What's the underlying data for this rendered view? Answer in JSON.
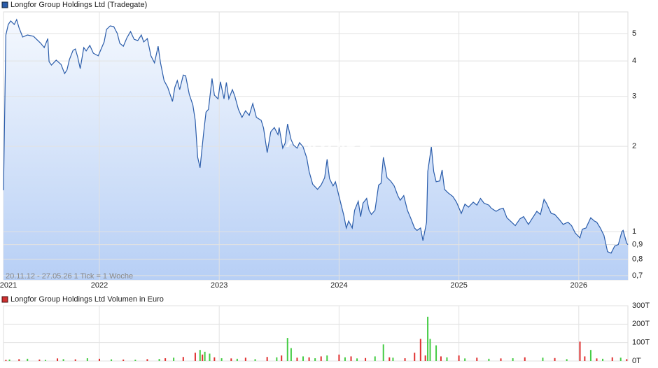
{
  "chart_data": [
    {
      "type": "line",
      "log_scale": true,
      "grid": true,
      "info_text": "20.11.12 - 27.05.26   1 Tick = 1 Woche",
      "watermark": "ARIVA.DE",
      "xlim": [
        2021.2,
        2026.41
      ],
      "xticks": [
        2021,
        2022,
        2023,
        2024,
        2025,
        2026
      ],
      "ylim": [
        0.676,
        5.96
      ],
      "yticks": [
        {
          "value": 0.7,
          "label": "0,7"
        },
        {
          "value": 0.8,
          "label": "0,8"
        },
        {
          "value": 0.9,
          "label": "0,9"
        },
        1,
        2,
        3,
        4,
        5
      ],
      "series": [
        {
          "name": "Longfor Group Holdings Ltd (Tradegate)",
          "color": "#2a5caa",
          "x": [
            2021.2,
            2021.22,
            2021.24,
            2021.26,
            2021.29,
            2021.31,
            2021.33,
            2021.36,
            2021.4,
            2021.45,
            2021.51,
            2021.54,
            2021.57,
            2021.58,
            2021.6,
            2021.64,
            2021.68,
            2021.71,
            2021.73,
            2021.75,
            2021.78,
            2021.8,
            2021.82,
            2021.84,
            2021.87,
            2021.89,
            2021.92,
            2021.95,
            2021.99,
            2022.04,
            2022.06,
            2022.09,
            2022.12,
            2022.15,
            2022.17,
            2022.2,
            2022.23,
            2022.26,
            2022.29,
            2022.32,
            2022.35,
            2022.37,
            2022.4,
            2022.43,
            2022.46,
            2022.49,
            2022.51,
            2022.54,
            2022.57,
            2022.61,
            2022.63,
            2022.65,
            2022.67,
            2022.7,
            2022.72,
            2022.75,
            2022.78,
            2022.8,
            2022.82,
            2022.84,
            2022.87,
            2022.89,
            2022.91,
            2022.94,
            2022.96,
            2022.99,
            2023.01,
            2023.04,
            2023.06,
            2023.08,
            2023.11,
            2023.13,
            2023.16,
            2023.19,
            2023.22,
            2023.25,
            2023.28,
            2023.31,
            2023.35,
            2023.37,
            2023.4,
            2023.43,
            2023.46,
            2023.49,
            2023.5,
            2023.53,
            2023.55,
            2023.57,
            2023.6,
            2023.62,
            2023.65,
            2023.67,
            2023.7,
            2023.73,
            2023.75,
            2023.78,
            2023.82,
            2023.85,
            2023.88,
            2023.9,
            2023.92,
            2023.95,
            2023.97,
            2024.01,
            2024.04,
            2024.06,
            2024.08,
            2024.11,
            2024.13,
            2024.16,
            2024.18,
            2024.2,
            2024.23,
            2024.25,
            2024.27,
            2024.3,
            2024.33,
            2024.35,
            2024.37,
            2024.4,
            2024.43,
            2024.46,
            2024.49,
            2024.51,
            2024.54,
            2024.57,
            2024.6,
            2024.63,
            2024.65,
            2024.68,
            2024.7,
            2024.73,
            2024.74,
            2024.77,
            2024.79,
            2024.81,
            2024.84,
            2024.86,
            2024.88,
            2024.91,
            2024.95,
            2024.98,
            2025.02,
            2025.05,
            2025.08,
            2025.12,
            2025.15,
            2025.18,
            2025.21,
            2025.25,
            2025.27,
            2025.31,
            2025.34,
            2025.37,
            2025.4,
            2025.44,
            2025.47,
            2025.51,
            2025.54,
            2025.58,
            2025.61,
            2025.65,
            2025.68,
            2025.71,
            2025.73,
            2025.77,
            2025.8,
            2025.84,
            2025.87,
            2025.91,
            2025.94,
            2025.97,
            2026.01,
            2026.03,
            2026.06,
            2026.1,
            2026.13,
            2026.15,
            2026.18,
            2026.21,
            2026.24,
            2026.27,
            2026.3,
            2026.33,
            2026.36,
            2026.37,
            2026.4,
            2026.41
          ],
          "values": [
            1.4,
            4.94,
            5.38,
            5.54,
            5.38,
            5.6,
            5.23,
            4.86,
            4.94,
            4.89,
            4.62,
            4.46,
            4.8,
            3.98,
            3.87,
            4.03,
            3.89,
            3.61,
            3.72,
            4.05,
            4.36,
            4.41,
            4.12,
            3.76,
            4.46,
            4.34,
            4.54,
            4.26,
            4.17,
            4.67,
            5.17,
            5.32,
            5.29,
            5.0,
            4.62,
            4.51,
            4.83,
            5.08,
            4.77,
            4.72,
            4.94,
            4.67,
            4.8,
            4.17,
            3.94,
            4.51,
            3.94,
            3.41,
            3.23,
            2.88,
            3.23,
            3.41,
            3.17,
            3.57,
            3.55,
            3.05,
            2.8,
            2.47,
            1.83,
            1.68,
            2.23,
            2.64,
            2.7,
            3.47,
            3.03,
            2.94,
            3.38,
            2.94,
            3.36,
            2.94,
            3.17,
            3.01,
            2.7,
            2.53,
            2.67,
            2.57,
            2.83,
            2.53,
            2.47,
            2.32,
            1.9,
            2.25,
            2.33,
            2.2,
            2.33,
            1.97,
            2.05,
            2.4,
            2.11,
            2.02,
            1.97,
            2.06,
            1.99,
            1.82,
            1.63,
            1.47,
            1.41,
            1.46,
            1.55,
            1.8,
            1.54,
            1.45,
            1.5,
            1.28,
            1.14,
            1.03,
            1.09,
            1.03,
            1.19,
            1.28,
            1.13,
            1.26,
            1.31,
            1.19,
            1.15,
            1.19,
            1.46,
            1.48,
            1.83,
            1.55,
            1.51,
            1.45,
            1.34,
            1.29,
            1.34,
            1.19,
            1.11,
            1.03,
            1.01,
            1.03,
            0.93,
            1.08,
            1.63,
            1.99,
            1.63,
            1.5,
            1.51,
            1.65,
            1.41,
            1.37,
            1.33,
            1.27,
            1.16,
            1.25,
            1.22,
            1.27,
            1.24,
            1.31,
            1.26,
            1.24,
            1.21,
            1.18,
            1.2,
            1.21,
            1.12,
            1.08,
            1.05,
            1.11,
            1.13,
            1.06,
            1.11,
            1.18,
            1.15,
            1.3,
            1.26,
            1.16,
            1.15,
            1.1,
            1.06,
            1.08,
            1.05,
            0.99,
            0.95,
            1.02,
            1.03,
            1.12,
            1.09,
            1.08,
            1.03,
            0.97,
            0.85,
            0.84,
            0.89,
            0.9,
            1.0,
            1.01,
            0.91,
            0.9
          ]
        }
      ]
    },
    {
      "type": "bar",
      "title": "Longfor Group Holdings Ltd Volumen in Euro",
      "color": "#d03030",
      "grid": true,
      "xlim": [
        2021.2,
        2026.41
      ],
      "ylim": [
        0,
        300
      ],
      "yticks": [
        {
          "value": 0,
          "label": "0T"
        },
        {
          "value": 100,
          "label": "100T"
        },
        {
          "value": 200,
          "label": "200T"
        },
        {
          "value": 300,
          "label": "300T"
        }
      ],
      "series": [
        {
          "color": "#44cc44",
          "x": [
            2021.25,
            2021.4,
            2021.55,
            2021.7,
            2021.9,
            2022.1,
            2022.3,
            2022.5,
            2022.62,
            2022.84,
            2022.88,
            2022.92,
            2023.02,
            2023.15,
            2023.3,
            2023.48,
            2023.57,
            2023.6,
            2023.7,
            2023.8,
            2023.9,
            2024.05,
            2024.15,
            2024.3,
            2024.37,
            2024.45,
            2024.74,
            2024.76,
            2024.81,
            2024.9,
            2025.05,
            2025.25,
            2025.45,
            2025.7,
            2025.9,
            2026.1,
            2026.2,
            2026.35
          ],
          "values": [
            8,
            12,
            6,
            10,
            15,
            9,
            7,
            11,
            18,
            60,
            50,
            40,
            15,
            12,
            10,
            20,
            125,
            70,
            25,
            15,
            30,
            20,
            14,
            25,
            90,
            18,
            240,
            120,
            85,
            20,
            14,
            12,
            15,
            18,
            10,
            60,
            12,
            18
          ]
        },
        {
          "color": "#e03030",
          "x": [
            2021.22,
            2021.33,
            2021.5,
            2021.65,
            2021.8,
            2022.0,
            2022.2,
            2022.4,
            2022.55,
            2022.7,
            2022.8,
            2022.86,
            2022.96,
            2023.1,
            2023.22,
            2023.4,
            2023.52,
            2023.65,
            2023.75,
            2023.85,
            2024.0,
            2024.1,
            2024.22,
            2024.42,
            2024.55,
            2024.63,
            2024.68,
            2024.72,
            2024.85,
            2025.0,
            2025.15,
            2025.35,
            2025.55,
            2025.8,
            2026.01,
            2026.05,
            2026.15,
            2026.28,
            2026.4
          ],
          "values": [
            6,
            10,
            8,
            14,
            9,
            12,
            8,
            10,
            15,
            22,
            45,
            35,
            20,
            14,
            18,
            22,
            30,
            18,
            20,
            25,
            35,
            25,
            16,
            20,
            15,
            45,
            120,
            30,
            25,
            30,
            18,
            14,
            20,
            16,
            105,
            25,
            14,
            20,
            10
          ]
        }
      ]
    }
  ]
}
